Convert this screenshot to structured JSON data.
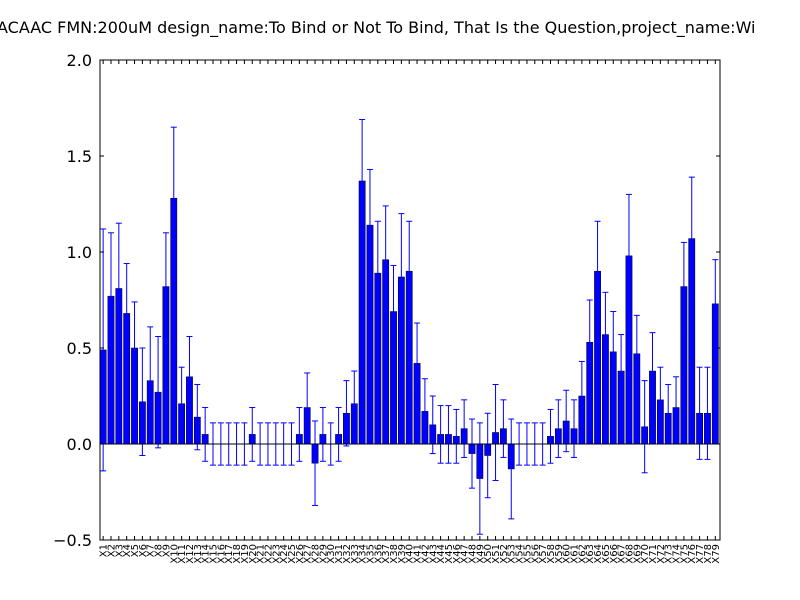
{
  "chart_data": {
    "type": "bar",
    "title": "ACAAC  FMN:200uM  design_name:To Bind or Not To Bind, That Is the Question,project_name:Wi",
    "categories": [
      "X1",
      "X2",
      "X3",
      "X4",
      "X5",
      "X6",
      "X7",
      "X8",
      "X9",
      "X10",
      "X11",
      "X12",
      "X13",
      "X14",
      "X15",
      "X16",
      "X17",
      "X18",
      "X19",
      "X20",
      "X21",
      "X22",
      "X23",
      "X24",
      "X25",
      "X26",
      "X27",
      "X28",
      "X29",
      "X30",
      "X31",
      "X32",
      "X33",
      "X34",
      "X35",
      "X36",
      "X37",
      "X38",
      "X39",
      "X40",
      "X41",
      "X42",
      "X43",
      "X44",
      "X45",
      "X46",
      "X47",
      "X48",
      "X49",
      "X50",
      "X51",
      "X52",
      "X53",
      "X54",
      "X55",
      "X56",
      "X57",
      "X58",
      "X59",
      "X60",
      "X61",
      "X62",
      "X63",
      "X64",
      "X65",
      "X66",
      "X67",
      "X68",
      "X69",
      "X70",
      "X71",
      "X72",
      "X73",
      "X74",
      "X75",
      "X76",
      "X77",
      "X78",
      "X79"
    ],
    "values": [
      0.49,
      0.77,
      0.81,
      0.68,
      0.5,
      0.22,
      0.33,
      0.27,
      0.82,
      1.28,
      0.21,
      0.35,
      0.14,
      0.05,
      0,
      0,
      0,
      0,
      0,
      0.05,
      0,
      0,
      0,
      0,
      0,
      0.05,
      0.19,
      -0.1,
      0.05,
      0,
      0.05,
      0.16,
      0.21,
      1.37,
      1.14,
      0.89,
      0.96,
      0.69,
      0.87,
      0.9,
      0.42,
      0.17,
      0.1,
      0.05,
      0.05,
      0.04,
      0.08,
      -0.05,
      -0.18,
      -0.06,
      0.06,
      0.08,
      -0.13,
      0,
      0,
      0,
      0,
      0.04,
      0.08,
      0.12,
      0.08,
      0.25,
      0.53,
      0.9,
      0.57,
      0.48,
      0.38,
      0.98,
      0.47,
      0.09,
      0.38,
      0.23,
      0.16,
      0.19,
      0.82,
      1.07,
      0.16,
      0.16,
      0.73
    ],
    "errors": [
      0.63,
      0.33,
      0.34,
      0.26,
      0.24,
      0.28,
      0.28,
      0.29,
      0.28,
      0.37,
      0.19,
      0.21,
      0.17,
      0.14,
      0.11,
      0.11,
      0.11,
      0.11,
      0.11,
      0.14,
      0.11,
      0.11,
      0.11,
      0.11,
      0.11,
      0.14,
      0.18,
      0.22,
      0.14,
      0.11,
      0.14,
      0.17,
      0.17,
      0.32,
      0.29,
      0.27,
      0.28,
      0.24,
      0.33,
      0.26,
      0.21,
      0.17,
      0.15,
      0.15,
      0.15,
      0.14,
      0.15,
      0.18,
      0.29,
      0.22,
      0.25,
      0.15,
      0.26,
      0.11,
      0.11,
      0.11,
      0.11,
      0.14,
      0.15,
      0.16,
      0.15,
      0.18,
      0.22,
      0.26,
      0.22,
      0.21,
      0.19,
      0.32,
      0.2,
      0.24,
      0.2,
      0.17,
      0.15,
      0.16,
      0.23,
      0.32,
      0.24,
      0.24,
      0.23
    ],
    "color": "#0000ff",
    "error_color": "#0000ff",
    "ylim": [
      -0.5,
      2.0
    ],
    "yticks": [
      {
        "value": -0.5,
        "label": "−0.5"
      },
      {
        "value": 0,
        "label": "0.0"
      },
      0.5,
      {
        "value": 1,
        "label": "1.0"
      },
      1.5,
      {
        "value": 2,
        "label": "2.0"
      }
    ]
  }
}
